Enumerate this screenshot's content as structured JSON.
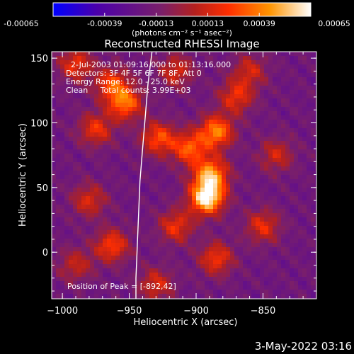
{
  "figure": {
    "title": "Reconstructed RHESSI Image",
    "info_lines": [
      "2-Jul-2003 01:09:16.000 to 01:13:16.000",
      "Detectors: 3F 4F 5F 6F 7F 8F, Att 0",
      "Energy Range: 12.0 - 25.0 keV",
      "Clean     Total counts: 3.99E+03"
    ],
    "peak_text": "Position of Peak = [-892,42]",
    "footer_date": "3-May-2022 03:16"
  },
  "colorbar": {
    "tick_labels": [
      "-0.00065",
      "-0.00039",
      "-0.00013",
      "0.00013",
      "0.00039",
      "0.00065"
    ],
    "units": "(photons cm⁻² s⁻¹ asec⁻²)",
    "range": [
      -0.00065,
      0.00065
    ],
    "colors": [
      "#0000ff",
      "#4b00aa",
      "#7a1f6a",
      "#b4201e",
      "#ff2e00",
      "#ff9400",
      "#ffffff"
    ]
  },
  "chart_data": {
    "type": "heatmap",
    "title": "Reconstructed RHESSI Image",
    "xlabel": "Heliocentric X (arcsec)",
    "ylabel": "Heliocentric Y (arcsec)",
    "xlim": [
      -1008,
      -810
    ],
    "ylim": [
      -36,
      155
    ],
    "xticks": [
      -1000,
      -950,
      -900,
      -850
    ],
    "yticks": [
      0,
      50,
      100,
      150
    ],
    "grid": false,
    "limb": [
      [
        -933,
        155
      ],
      [
        -936,
        130
      ],
      [
        -938,
        105
      ],
      [
        -940,
        80
      ],
      [
        -942,
        55
      ],
      [
        -943,
        30
      ],
      [
        -944,
        5
      ],
      [
        -945,
        -20
      ],
      [
        -945,
        -36
      ]
    ],
    "sources": [
      {
        "x": -892,
        "y": 42,
        "value": 0.00065
      },
      {
        "x": -889,
        "y": 60,
        "value": 0.00045
      },
      {
        "x": -885,
        "y": 93,
        "value": 0.0004
      },
      {
        "x": -905,
        "y": 80,
        "value": 0.0003
      },
      {
        "x": -953,
        "y": 115,
        "value": 0.00035
      },
      {
        "x": -963,
        "y": 130,
        "value": 0.00025
      },
      {
        "x": -975,
        "y": 95,
        "value": 0.0002
      },
      {
        "x": -990,
        "y": 145,
        "value": 0.0002
      },
      {
        "x": -928,
        "y": 88,
        "value": 0.00028
      },
      {
        "x": -870,
        "y": 120,
        "value": 0.0002
      },
      {
        "x": -915,
        "y": 20,
        "value": 0.0002
      },
      {
        "x": -885,
        "y": -5,
        "value": 0.00022
      },
      {
        "x": -963,
        "y": 5,
        "value": 0.00025
      },
      {
        "x": -980,
        "y": 40,
        "value": 0.00015
      },
      {
        "x": -850,
        "y": 20,
        "value": 0.00018
      },
      {
        "x": -840,
        "y": 75,
        "value": 0.00012
      },
      {
        "x": -990,
        "y": -10,
        "value": 0.0001
      },
      {
        "x": -930,
        "y": -25,
        "value": 0.00015
      },
      {
        "x": -860,
        "y": 140,
        "value": 0.00012
      },
      {
        "x": -915,
        "y": 140,
        "value": 0.00015
      }
    ]
  }
}
